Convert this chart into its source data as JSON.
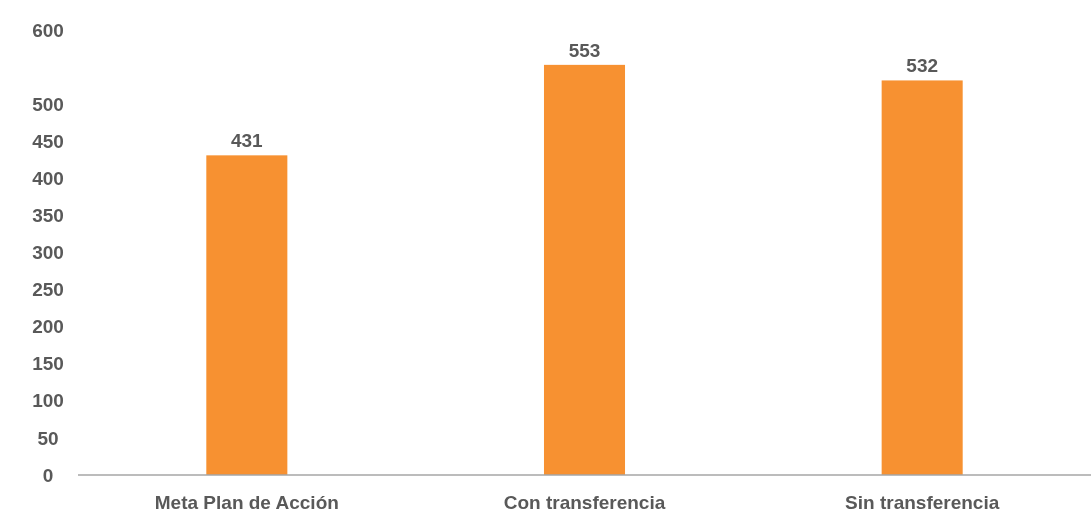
{
  "chart_data": {
    "type": "bar",
    "categories": [
      "Meta Plan de Acción",
      "Con transferencia",
      "Sin transferencia"
    ],
    "values": [
      431,
      553,
      532
    ],
    "color": "#f79131",
    "ylim": [
      0,
      600
    ],
    "yticks": [
      0,
      50,
      100,
      150,
      200,
      250,
      300,
      350,
      400,
      450,
      500,
      600
    ],
    "data_labels": true,
    "grid": false
  }
}
